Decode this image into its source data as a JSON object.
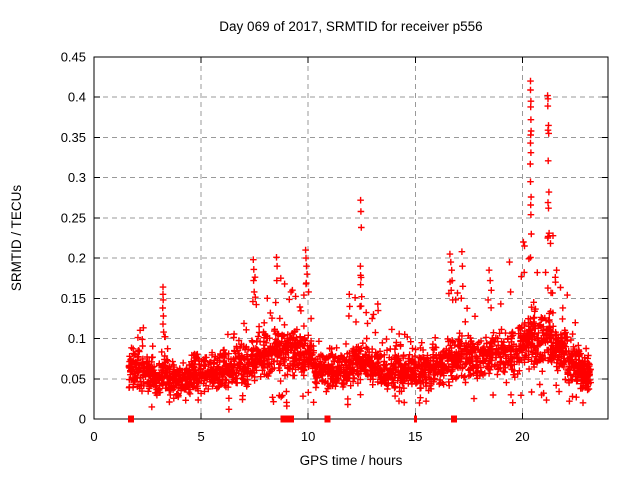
{
  "page": {
    "background": "#ffffff"
  },
  "chart_data": {
    "type": "scatter",
    "title": "Day 069 of 2017, SRMTID for receiver p556",
    "xlabel": "GPS time / hours",
    "ylabel": "SRMTID / TECUs",
    "xlim": [
      0,
      24
    ],
    "ylim": [
      0,
      0.45
    ],
    "xticks": [
      0,
      5,
      10,
      15,
      20
    ],
    "yticks": [
      0,
      0.05,
      0.1,
      0.15,
      0.2,
      0.25,
      0.3,
      0.35,
      0.4,
      0.45
    ],
    "grid": true,
    "grid_style": "dashed",
    "legend": "none",
    "marker": "plus",
    "marker_color": "#ff0000",
    "axis_color": "#000000",
    "grid_color": "#999999",
    "x_data_range": [
      1.6,
      23.2
    ],
    "seed": 20170069,
    "band_segments": [
      [
        1.62,
        2.15,
        70,
        0.062,
        0.028,
        0.105
      ],
      [
        2.15,
        2.75,
        65,
        0.058,
        0.026,
        0.115
      ],
      [
        2.75,
        3.15,
        45,
        0.048,
        0.024,
        0.08
      ],
      [
        3.15,
        3.45,
        35,
        0.06,
        0.03,
        0.14
      ],
      [
        3.45,
        4.1,
        75,
        0.047,
        0.024,
        0.075
      ],
      [
        4.1,
        4.65,
        65,
        0.05,
        0.022,
        0.08
      ],
      [
        4.65,
        5.3,
        75,
        0.055,
        0.024,
        0.09
      ],
      [
        5.3,
        5.9,
        70,
        0.058,
        0.025,
        0.1
      ],
      [
        5.9,
        6.6,
        80,
        0.062,
        0.026,
        0.11
      ],
      [
        6.6,
        7.3,
        80,
        0.068,
        0.028,
        0.13
      ],
      [
        7.3,
        7.65,
        45,
        0.075,
        0.03,
        0.19
      ],
      [
        7.65,
        8.35,
        90,
        0.078,
        0.03,
        0.155
      ],
      [
        8.35,
        9.0,
        90,
        0.085,
        0.032,
        0.185
      ],
      [
        9.0,
        9.75,
        90,
        0.082,
        0.032,
        0.165
      ],
      [
        9.75,
        10.3,
        65,
        0.078,
        0.032,
        0.19
      ],
      [
        10.3,
        11.0,
        80,
        0.058,
        0.025,
        0.1
      ],
      [
        11.0,
        11.75,
        85,
        0.057,
        0.025,
        0.11
      ],
      [
        11.75,
        12.15,
        50,
        0.062,
        0.026,
        0.14
      ],
      [
        12.15,
        12.65,
        55,
        0.068,
        0.028,
        0.19
      ],
      [
        12.65,
        13.4,
        85,
        0.065,
        0.027,
        0.145
      ],
      [
        13.4,
        14.2,
        90,
        0.06,
        0.026,
        0.115
      ],
      [
        14.2,
        15.0,
        90,
        0.058,
        0.025,
        0.11
      ],
      [
        15.0,
        15.7,
        80,
        0.06,
        0.025,
        0.105
      ],
      [
        15.7,
        16.4,
        80,
        0.065,
        0.027,
        0.12
      ],
      [
        16.4,
        17.0,
        70,
        0.075,
        0.03,
        0.185
      ],
      [
        17.0,
        17.6,
        65,
        0.078,
        0.03,
        0.17
      ],
      [
        17.6,
        18.3,
        75,
        0.075,
        0.028,
        0.13
      ],
      [
        18.3,
        18.8,
        55,
        0.08,
        0.03,
        0.17
      ],
      [
        18.8,
        19.8,
        95,
        0.08,
        0.032,
        0.16
      ],
      [
        19.8,
        20.25,
        55,
        0.09,
        0.035,
        0.22
      ],
      [
        20.25,
        20.6,
        55,
        0.1,
        0.04,
        0.25
      ],
      [
        20.6,
        21.05,
        60,
        0.095,
        0.038,
        0.19
      ],
      [
        21.05,
        21.5,
        60,
        0.1,
        0.04,
        0.23
      ],
      [
        21.5,
        22.1,
        80,
        0.085,
        0.034,
        0.185
      ],
      [
        22.1,
        22.7,
        90,
        0.068,
        0.028,
        0.125
      ],
      [
        22.7,
        23.2,
        80,
        0.058,
        0.025,
        0.1
      ]
    ],
    "outliers": [
      [
        3.22,
        0.164
      ],
      [
        3.22,
        0.155
      ],
      [
        3.23,
        0.148
      ],
      [
        3.21,
        0.138
      ],
      [
        3.24,
        0.128
      ],
      [
        3.22,
        0.118
      ],
      [
        3.25,
        0.108
      ],
      [
        7.44,
        0.198
      ],
      [
        7.46,
        0.186
      ],
      [
        7.45,
        0.172
      ],
      [
        7.48,
        0.158
      ],
      [
        7.42,
        0.146
      ],
      [
        8.52,
        0.201
      ],
      [
        8.55,
        0.19
      ],
      [
        8.72,
        0.175
      ],
      [
        8.9,
        0.168
      ],
      [
        9.2,
        0.158
      ],
      [
        9.88,
        0.21
      ],
      [
        9.9,
        0.2
      ],
      [
        9.92,
        0.19
      ],
      [
        9.95,
        0.18
      ],
      [
        9.9,
        0.168
      ],
      [
        10.02,
        0.158
      ],
      [
        11.92,
        0.155
      ],
      [
        11.94,
        0.14
      ],
      [
        11.9,
        0.128
      ],
      [
        12.45,
        0.272
      ],
      [
        12.46,
        0.258
      ],
      [
        12.48,
        0.238
      ],
      [
        12.44,
        0.19
      ],
      [
        12.47,
        0.176
      ],
      [
        12.45,
        0.167
      ],
      [
        12.5,
        0.152
      ],
      [
        12.42,
        0.14
      ],
      [
        13.05,
        0.13
      ],
      [
        13.25,
        0.143
      ],
      [
        16.62,
        0.205
      ],
      [
        16.66,
        0.195
      ],
      [
        16.7,
        0.185
      ],
      [
        16.72,
        0.172
      ],
      [
        16.68,
        0.16
      ],
      [
        16.75,
        0.148
      ],
      [
        17.18,
        0.208
      ],
      [
        17.2,
        0.19
      ],
      [
        17.22,
        0.165
      ],
      [
        17.15,
        0.15
      ],
      [
        18.45,
        0.185
      ],
      [
        18.5,
        0.172
      ],
      [
        18.55,
        0.16
      ],
      [
        18.4,
        0.148
      ],
      [
        19.4,
        0.195
      ],
      [
        19.45,
        0.158
      ],
      [
        20.05,
        0.22
      ],
      [
        20.1,
        0.215
      ],
      [
        20.38,
        0.42
      ],
      [
        20.38,
        0.409
      ],
      [
        20.4,
        0.395
      ],
      [
        20.39,
        0.388
      ],
      [
        20.4,
        0.372
      ],
      [
        20.41,
        0.358
      ],
      [
        20.39,
        0.353
      ],
      [
        20.38,
        0.343
      ],
      [
        20.4,
        0.331
      ],
      [
        20.37,
        0.317
      ],
      [
        20.38,
        0.295
      ],
      [
        20.41,
        0.276
      ],
      [
        20.39,
        0.266
      ],
      [
        20.4,
        0.254
      ],
      [
        20.42,
        0.23
      ],
      [
        21.18,
        0.402
      ],
      [
        21.2,
        0.398
      ],
      [
        21.19,
        0.389
      ],
      [
        21.22,
        0.365
      ],
      [
        21.2,
        0.359
      ],
      [
        21.23,
        0.355
      ],
      [
        21.21,
        0.321
      ],
      [
        21.24,
        0.282
      ],
      [
        21.2,
        0.269
      ],
      [
        21.22,
        0.262
      ],
      [
        21.25,
        0.231
      ],
      [
        21.19,
        0.225
      ],
      [
        21.6,
        0.185
      ],
      [
        21.55,
        0.17
      ],
      [
        2.7,
        0.015
      ],
      [
        6.3,
        0.012
      ],
      [
        9.0,
        0.016
      ],
      [
        11.85,
        0.018
      ],
      [
        15.2,
        0.02
      ],
      [
        20.9,
        0.03
      ]
    ],
    "zero_markers": [
      {
        "x0": 1.58,
        "x1": 1.86
      },
      {
        "x0": 8.7,
        "x1": 9.35
      },
      {
        "x0": 10.76,
        "x1": 11.04
      },
      {
        "x0": 14.95,
        "x1": 15.09
      },
      {
        "x0": 16.68,
        "x1": 16.96
      }
    ]
  }
}
